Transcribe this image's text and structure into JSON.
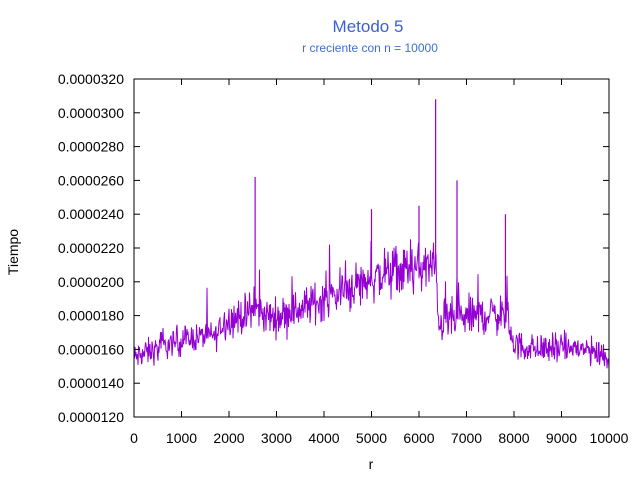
{
  "chart_data": {
    "type": "line",
    "title": "Metodo 5",
    "subtitle": "r creciente con n = 10000",
    "xlabel": "r",
    "ylabel": "Tiempo",
    "xlim": [
      0,
      10000
    ],
    "ylim": [
      1.2e-05,
      3.2e-05
    ],
    "x_ticks": [
      "0",
      "1000",
      "2000",
      "3000",
      "4000",
      "5000",
      "6000",
      "7000",
      "8000",
      "9000",
      "10000"
    ],
    "y_ticks": [
      "0.0000120",
      "0.0000140",
      "0.0000160",
      "0.0000180",
      "0.0000200",
      "0.0000220",
      "0.0000240",
      "0.0000260",
      "0.0000280",
      "0.0000300",
      "0.0000320"
    ],
    "grid": false,
    "legend": false,
    "series": [
      {
        "color": "#9400d3",
        "x": [
          0,
          250,
          500,
          750,
          1000,
          1250,
          1500,
          1750,
          1850,
          2000,
          2250,
          2500,
          2550,
          2750,
          3000,
          3250,
          3500,
          3750,
          4000,
          4250,
          4500,
          4750,
          5000,
          5250,
          5500,
          5750,
          6000,
          6250,
          6350,
          6400,
          6500,
          6750,
          7000,
          7250,
          7500,
          7750,
          7850,
          8000,
          8250,
          8500,
          8750,
          9000,
          9250,
          9500,
          9750,
          10000
        ],
        "y": [
          1.55e-05,
          1.58e-05,
          1.6e-05,
          1.63e-05,
          1.65e-05,
          1.67e-05,
          1.68e-05,
          1.68e-05,
          1.75e-05,
          1.78e-05,
          1.79e-05,
          1.83e-05,
          1.85e-05,
          1.8e-05,
          1.79e-05,
          1.82e-05,
          1.84e-05,
          1.87e-05,
          1.9e-05,
          1.92e-05,
          1.96e-05,
          1.99e-05,
          2.02e-05,
          2.04e-05,
          2.06e-05,
          2.07e-05,
          2.08e-05,
          2.09e-05,
          2.1e-05,
          1.78e-05,
          1.77e-05,
          1.78e-05,
          1.79e-05,
          1.8e-05,
          1.81e-05,
          1.81e-05,
          1.8e-05,
          1.63e-05,
          1.61e-05,
          1.6e-05,
          1.61e-05,
          1.6e-05,
          1.61e-05,
          1.6e-05,
          1.58e-05,
          1.55e-05
        ],
        "spread": [
          1.2e-06,
          1.2e-06,
          1.2e-06,
          1.2e-06,
          1.2e-06,
          1.2e-06,
          1.2e-06,
          1.2e-06,
          1.5e-06,
          1.6e-06,
          1.6e-06,
          1.7e-06,
          1.7e-06,
          1.6e-06,
          1.6e-06,
          1.6e-06,
          1.7e-06,
          1.8e-06,
          1.8e-06,
          1.9e-06,
          2e-06,
          2.1e-06,
          2.2e-06,
          2.2e-06,
          2.2e-06,
          2.2e-06,
          2.2e-06,
          2.2e-06,
          2.2e-06,
          1.8e-06,
          1.8e-06,
          1.8e-06,
          1.8e-06,
          1.8e-06,
          1.8e-06,
          1.8e-06,
          1.8e-06,
          1.3e-06,
          1.3e-06,
          1.3e-06,
          1.3e-06,
          1.3e-06,
          1.3e-06,
          1.3e-06,
          1.3e-06,
          1.3e-06
        ],
        "spikes": [
          {
            "x": 2550,
            "y": 2.62e-05
          },
          {
            "x": 6350,
            "y": 3.08e-05
          },
          {
            "x": 6800,
            "y": 2.6e-05
          },
          {
            "x": 7820,
            "y": 2.4e-05
          },
          {
            "x": 5000,
            "y": 2.43e-05
          },
          {
            "x": 6000,
            "y": 2.45e-05
          }
        ]
      }
    ]
  }
}
